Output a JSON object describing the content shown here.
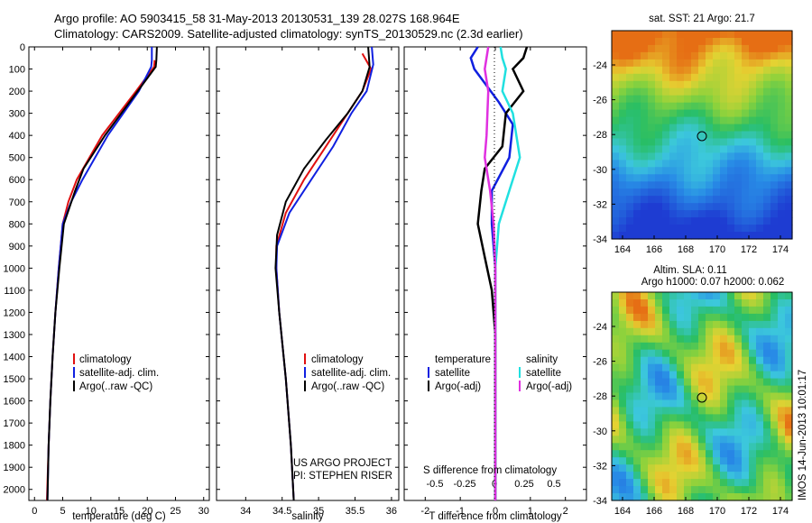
{
  "header": {
    "line1": "Argo profile: AO 5903415_58 31-May-2013 20130531_139 28.027S 168.964E",
    "line2": "Climatology: CARS2009. Satellite-adjusted climatology: synTS_20130529.nc (2.3d earlier)"
  },
  "colors": {
    "climatology": "#e01010",
    "satellite": "#1020e0",
    "argo": "#000000",
    "argo_adj": "#e030e0",
    "sat_cyan": "#20e0e0"
  },
  "depth_ticks": [
    "0",
    "100",
    "200",
    "300",
    "400",
    "500",
    "600",
    "700",
    "800",
    "900",
    "1000",
    "1100",
    "1200",
    "1300",
    "1400",
    "1500",
    "1600",
    "1700",
    "1800",
    "1900",
    "2000"
  ],
  "panels": {
    "temperature": {
      "xlabel": "temperature (deg C)",
      "xticks": [
        "0",
        "5",
        "10",
        "15",
        "20",
        "25",
        "30"
      ],
      "legend": [
        "climatology",
        "satellite-adj. clim.",
        "Argo(..raw -QC)"
      ]
    },
    "salinity": {
      "xlabel": "salinity",
      "xticks": [
        "34",
        "34.5",
        "35",
        "35.5",
        "36"
      ],
      "legend": [
        "climatology",
        "satellite-adj. clim.",
        "Argo(..raw -QC)"
      ],
      "project": "US ARGO PROJECT",
      "pi": "PI: STEPHEN RISER"
    },
    "difference": {
      "xlabel": "T difference from climatology",
      "xticks": [
        "-2",
        "-1",
        "0",
        "1",
        "2"
      ],
      "top_axis_label": "S difference from climatology",
      "top_ticks": [
        "-0.5",
        "-0.25",
        "0",
        "0.25",
        "0.5"
      ],
      "legend_temp_title": "temperature",
      "legend_sal_title": "salinity",
      "legend_temp": [
        "satellite",
        "Argo(-adj)"
      ],
      "legend_sal": [
        "satellite",
        "Argo(-adj)"
      ]
    }
  },
  "maps": {
    "sst": {
      "title": "sat. SST: 21 Argo: 21.7",
      "yticks": [
        "-24",
        "-26",
        "-28",
        "-30",
        "-32",
        "-34"
      ],
      "xticks": [
        "164",
        "166",
        "168",
        "170",
        "172",
        "174"
      ]
    },
    "sla": {
      "title1": "Altim. SLA: 0.11",
      "title2": "Argo h1000: 0.07 h2000: 0.062",
      "yticks": [
        "-24",
        "-26",
        "-28",
        "-30",
        "-32",
        "-34"
      ],
      "xticks": [
        "164",
        "166",
        "168",
        "170",
        "172",
        "174"
      ]
    }
  },
  "stamp": "IMOS 14-Jun-2013 10:01:17",
  "chart_data": [
    {
      "type": "line",
      "xlabel": "temperature (deg C)",
      "ylabel": "",
      "xlim": [
        -1,
        31
      ],
      "ylim": [
        2050,
        0
      ],
      "series": [
        {
          "name": "climatology",
          "points": [
            [
              21.3,
              60
            ],
            [
              21.2,
              90
            ],
            [
              18,
              200
            ],
            [
              12,
              400
            ],
            [
              7.5,
              600
            ],
            [
              6,
              700
            ],
            [
              5,
              800
            ],
            [
              4.3,
              1000
            ],
            [
              3.7,
              1200
            ],
            [
              3.2,
              1400
            ],
            [
              2.8,
              1600
            ],
            [
              2.5,
              1800
            ],
            [
              2.2,
              2050
            ]
          ]
        },
        {
          "name": "satellite-adj. clim.",
          "points": [
            [
              20.8,
              0
            ],
            [
              20.8,
              60
            ],
            [
              20.7,
              90
            ],
            [
              18.5,
              200
            ],
            [
              13,
              400
            ],
            [
              8.5,
              600
            ],
            [
              6.5,
              700
            ],
            [
              5,
              800
            ],
            [
              4.3,
              1000
            ],
            [
              3.7,
              1200
            ],
            [
              3.2,
              1400
            ],
            [
              2.8,
              1600
            ],
            [
              2.5,
              1800
            ],
            [
              2.3,
              2050
            ]
          ]
        },
        {
          "name": "Argo(..raw -QC)",
          "points": [
            [
              21.7,
              0
            ],
            [
              21.6,
              60
            ],
            [
              21.5,
              90
            ],
            [
              18.3,
              200
            ],
            [
              12.5,
              400
            ],
            [
              8.7,
              550
            ],
            [
              7.2,
              650
            ],
            [
              5.2,
              800
            ],
            [
              4.4,
              1000
            ],
            [
              3.7,
              1200
            ],
            [
              3.2,
              1400
            ],
            [
              2.8,
              1600
            ],
            [
              2.5,
              1800
            ],
            [
              2.3,
              2050
            ]
          ]
        }
      ]
    },
    {
      "type": "line",
      "xlabel": "salinity",
      "ylabel": "",
      "xlim": [
        33.6,
        36.1
      ],
      "ylim": [
        2050,
        0
      ],
      "series": [
        {
          "name": "climatology",
          "points": [
            [
              35.6,
              30
            ],
            [
              35.72,
              100
            ],
            [
              35.6,
              200
            ],
            [
              35.4,
              300
            ],
            [
              35.1,
              450
            ],
            [
              34.8,
              600
            ],
            [
              34.55,
              750
            ],
            [
              34.42,
              900
            ],
            [
              34.42,
              1000
            ],
            [
              34.46,
              1200
            ],
            [
              34.55,
              1500
            ],
            [
              34.62,
              1800
            ],
            [
              34.66,
              2050
            ]
          ]
        },
        {
          "name": "satellite-adj. clim.",
          "points": [
            [
              35.73,
              0
            ],
            [
              35.75,
              80
            ],
            [
              35.66,
              200
            ],
            [
              35.45,
              300
            ],
            [
              35.2,
              450
            ],
            [
              34.9,
              600
            ],
            [
              34.6,
              750
            ],
            [
              34.43,
              900
            ],
            [
              34.42,
              1000
            ],
            [
              34.46,
              1200
            ],
            [
              34.55,
              1500
            ],
            [
              34.62,
              1800
            ],
            [
              34.66,
              2050
            ]
          ]
        },
        {
          "name": "Argo(..raw -QC)",
          "points": [
            [
              35.68,
              0
            ],
            [
              35.7,
              90
            ],
            [
              35.6,
              200
            ],
            [
              35.4,
              300
            ],
            [
              35.1,
              420
            ],
            [
              34.8,
              550
            ],
            [
              34.55,
              700
            ],
            [
              34.43,
              850
            ],
            [
              34.41,
              1000
            ],
            [
              34.46,
              1200
            ],
            [
              34.55,
              1500
            ],
            [
              34.62,
              1800
            ],
            [
              34.66,
              2050
            ]
          ]
        }
      ]
    },
    {
      "type": "line",
      "xlabel": "T difference from climatology",
      "ylabel": "",
      "xlim": [
        -2.6,
        2.6
      ],
      "ylim": [
        2050,
        0
      ],
      "series": [
        {
          "name": "temperature satellite",
          "points": [
            [
              -0.5,
              0
            ],
            [
              -0.7,
              50
            ],
            [
              -0.6,
              100
            ],
            [
              0.1,
              250
            ],
            [
              0.5,
              350
            ],
            [
              0.4,
              500
            ],
            [
              -0.1,
              650
            ],
            [
              -0.1,
              800
            ],
            [
              0.0,
              1000
            ],
            [
              0.0,
              2050
            ]
          ]
        },
        {
          "name": "temperature Argo(-adj)",
          "points": [
            [
              0.9,
              0
            ],
            [
              0.8,
              50
            ],
            [
              0.5,
              100
            ],
            [
              0.8,
              200
            ],
            [
              0.3,
              300
            ],
            [
              0.2,
              450
            ],
            [
              -0.3,
              550
            ],
            [
              -0.4,
              650
            ],
            [
              -0.5,
              800
            ],
            [
              -0.3,
              950
            ],
            [
              -0.1,
              1100
            ],
            [
              0.0,
              1300
            ],
            [
              0.0,
              2050
            ]
          ]
        },
        {
          "name": "salinity satellite",
          "points": [
            [
              0.15,
              0
            ],
            [
              0.2,
              50
            ],
            [
              0.3,
              100
            ],
            [
              0.2,
              200
            ],
            [
              0.5,
              300
            ],
            [
              0.7,
              500
            ],
            [
              0.4,
              650
            ],
            [
              0.1,
              800
            ],
            [
              0.0,
              1000
            ],
            [
              0.0,
              2050
            ]
          ]
        },
        {
          "name": "salinity Argo(-adj)",
          "points": [
            [
              -0.2,
              0
            ],
            [
              -0.3,
              100
            ],
            [
              -0.2,
              200
            ],
            [
              -0.25,
              400
            ],
            [
              -0.3,
              500
            ],
            [
              -0.15,
              650
            ],
            [
              -0.05,
              800
            ],
            [
              0.0,
              1000
            ],
            [
              0.0,
              2050
            ]
          ]
        }
      ]
    }
  ]
}
